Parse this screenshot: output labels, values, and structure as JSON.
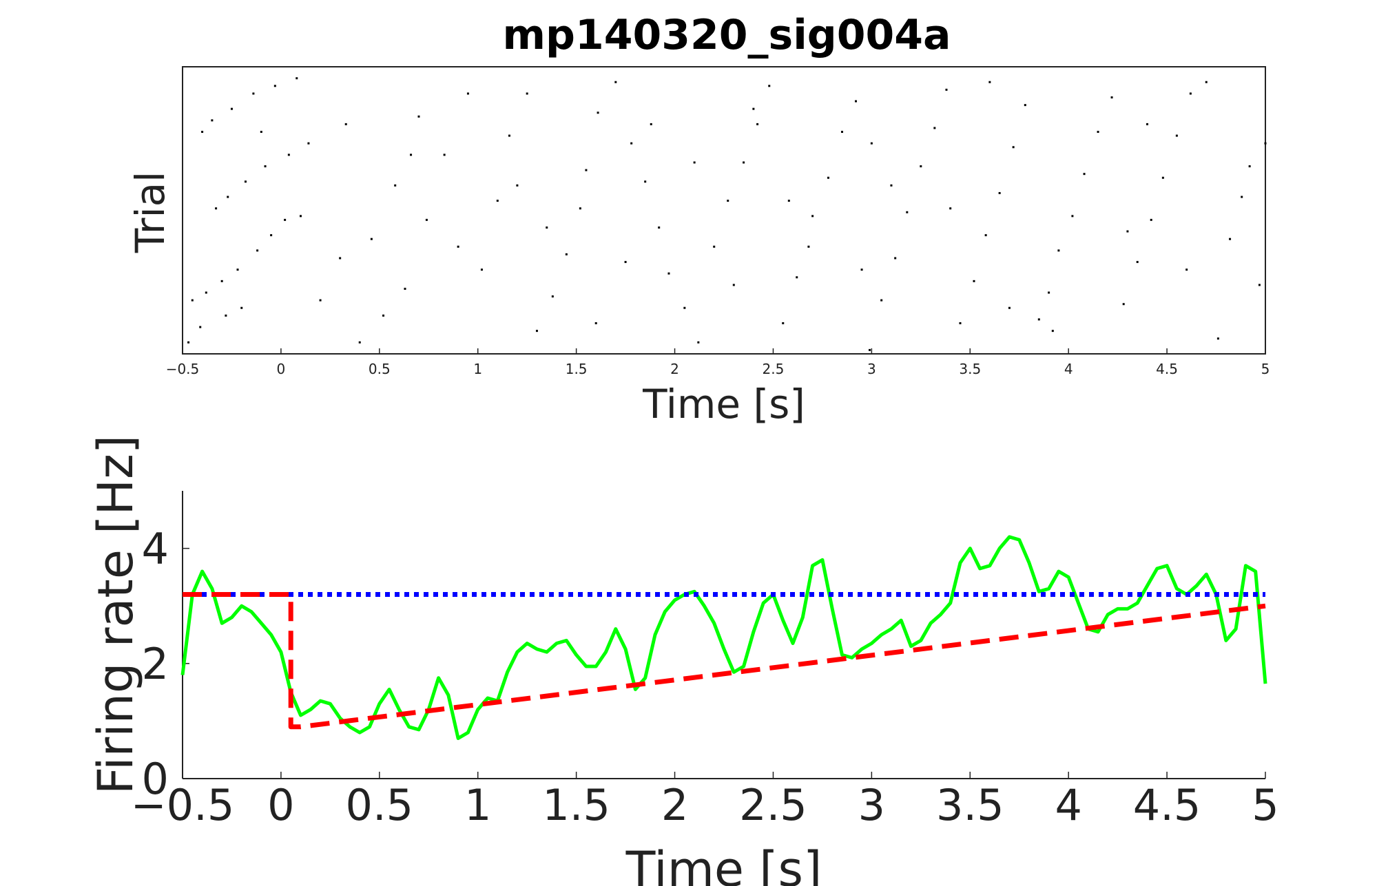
{
  "title": "mp140320_sig004a",
  "chart_data": [
    {
      "type": "scatter",
      "subtype": "raster",
      "xlabel": "Time [s]",
      "ylabel": "Trial",
      "xlim": [
        -0.5,
        5
      ],
      "ylim": [
        0,
        75
      ],
      "xticks": [
        "−0.5",
        "0",
        "0.5",
        "1",
        "1.5",
        "2",
        "2.5",
        "3",
        "3.5",
        "4",
        "4.5",
        "5"
      ],
      "yticks": [],
      "grid": false,
      "series": [
        {
          "marker_color": "#000000",
          "points": [
            [
              -0.47,
              3
            ],
            [
              -0.41,
              7
            ],
            [
              -0.28,
              10
            ],
            [
              -0.2,
              12
            ],
            [
              -0.45,
              14
            ],
            [
              -0.38,
              16
            ],
            [
              -0.3,
              19
            ],
            [
              -0.22,
              22
            ],
            [
              -0.12,
              27
            ],
            [
              -0.05,
              31
            ],
            [
              0.02,
              35
            ],
            [
              0.1,
              36
            ],
            [
              -0.33,
              38
            ],
            [
              -0.27,
              41
            ],
            [
              -0.18,
              45
            ],
            [
              -0.08,
              49
            ],
            [
              0.04,
              52
            ],
            [
              0.14,
              55
            ],
            [
              -0.4,
              58
            ],
            [
              -0.35,
              61
            ],
            [
              -0.25,
              64
            ],
            [
              -0.14,
              68
            ],
            [
              -0.03,
              70
            ],
            [
              0.08,
              72
            ],
            [
              0.33,
              60
            ],
            [
              0.4,
              3
            ],
            [
              0.52,
              10
            ],
            [
              0.63,
              17
            ],
            [
              0.46,
              30
            ],
            [
              0.74,
              35
            ],
            [
              0.58,
              44
            ],
            [
              0.83,
              52
            ],
            [
              0.7,
              62
            ],
            [
              0.95,
              68
            ],
            [
              1.02,
              22
            ],
            [
              1.1,
              40
            ],
            [
              1.16,
              57
            ],
            [
              1.25,
              68
            ],
            [
              1.3,
              6
            ],
            [
              1.38,
              15
            ],
            [
              1.45,
              26
            ],
            [
              1.52,
              38
            ],
            [
              1.55,
              48
            ],
            [
              1.61,
              63
            ],
            [
              1.7,
              71
            ],
            [
              1.78,
              55
            ],
            [
              1.85,
              45
            ],
            [
              1.92,
              33
            ],
            [
              1.97,
              21
            ],
            [
              2.05,
              12
            ],
            [
              2.12,
              3
            ],
            [
              2.2,
              28
            ],
            [
              2.27,
              40
            ],
            [
              2.35,
              50
            ],
            [
              2.42,
              60
            ],
            [
              2.48,
              70
            ],
            [
              2.55,
              8
            ],
            [
              2.62,
              20
            ],
            [
              2.7,
              36
            ],
            [
              2.78,
              46
            ],
            [
              2.85,
              58
            ],
            [
              2.92,
              66
            ],
            [
              2.99,
              1
            ],
            [
              3.05,
              14
            ],
            [
              3.12,
              25
            ],
            [
              3.18,
              37
            ],
            [
              3.25,
              49
            ],
            [
              3.32,
              59
            ],
            [
              3.38,
              69
            ],
            [
              3.45,
              8
            ],
            [
              3.52,
              19
            ],
            [
              3.58,
              31
            ],
            [
              3.65,
              42
            ],
            [
              3.72,
              54
            ],
            [
              3.78,
              65
            ],
            [
              3.85,
              9
            ],
            [
              3.9,
              16
            ],
            [
              3.95,
              27
            ],
            [
              4.02,
              36
            ],
            [
              4.08,
              47
            ],
            [
              4.15,
              58
            ],
            [
              4.22,
              67
            ],
            [
              4.28,
              13
            ],
            [
              4.35,
              24
            ],
            [
              4.42,
              35
            ],
            [
              4.48,
              46
            ],
            [
              4.55,
              57
            ],
            [
              4.62,
              68
            ],
            [
              4.7,
              71
            ],
            [
              4.76,
              4
            ],
            [
              4.82,
              30
            ],
            [
              4.88,
              41
            ],
            [
              4.92,
              49
            ],
            [
              4.97,
              18
            ],
            [
              5.0,
              55
            ],
            [
              3.92,
              6
            ],
            [
              3.7,
              12
            ],
            [
              3.1,
              44
            ],
            [
              2.95,
              22
            ],
            [
              2.68,
              28
            ],
            [
              2.4,
              64
            ],
            [
              2.3,
              18
            ],
            [
              2.1,
              50
            ],
            [
              1.88,
              60
            ],
            [
              1.6,
              8
            ],
            [
              1.35,
              33
            ],
            [
              1.2,
              44
            ],
            [
              0.9,
              28
            ],
            [
              0.66,
              52
            ],
            [
              0.2,
              14
            ],
            [
              0.3,
              25
            ],
            [
              -0.1,
              58
            ],
            [
              4.3,
              32
            ],
            [
              4.6,
              22
            ],
            [
              4.4,
              60
            ],
            [
              3.6,
              71
            ],
            [
              3.4,
              38
            ],
            [
              3.0,
              55
            ],
            [
              2.58,
              40
            ],
            [
              1.75,
              24
            ]
          ]
        }
      ]
    },
    {
      "type": "line",
      "xlabel": "Time [s]",
      "ylabel": "Firing rate [Hz]",
      "xlim": [
        -0.5,
        5
      ],
      "ylim": [
        0,
        5
      ],
      "xticks": [
        "−0.5",
        "0",
        "0.5",
        "1",
        "1.5",
        "2",
        "2.5",
        "3",
        "3.5",
        "4",
        "4.5",
        "5"
      ],
      "yticks": [
        "0",
        "2",
        "4"
      ],
      "grid": false,
      "series": [
        {
          "color": "#00ff00",
          "style": "solid",
          "x": [
            -0.5,
            -0.45,
            -0.4,
            -0.35,
            -0.3,
            -0.25,
            -0.2,
            -0.15,
            -0.1,
            -0.05,
            0,
            0.05,
            0.1,
            0.15,
            0.2,
            0.25,
            0.3,
            0.35,
            0.4,
            0.45,
            0.5,
            0.55,
            0.6,
            0.65,
            0.7,
            0.75,
            0.8,
            0.85,
            0.9,
            0.95,
            1,
            1.05,
            1.1,
            1.15,
            1.2,
            1.25,
            1.3,
            1.35,
            1.4,
            1.45,
            1.5,
            1.55,
            1.6,
            1.65,
            1.7,
            1.75,
            1.8,
            1.85,
            1.9,
            1.95,
            2,
            2.05,
            2.1,
            2.15,
            2.2,
            2.25,
            2.3,
            2.35,
            2.4,
            2.45,
            2.5,
            2.55,
            2.6,
            2.65,
            2.7,
            2.75,
            2.8,
            2.85,
            2.9,
            2.95,
            3,
            3.05,
            3.1,
            3.15,
            3.2,
            3.25,
            3.3,
            3.35,
            3.4,
            3.45,
            3.5,
            3.55,
            3.6,
            3.65,
            3.7,
            3.75,
            3.8,
            3.85,
            3.9,
            3.95,
            4,
            4.05,
            4.1,
            4.15,
            4.2,
            4.25,
            4.3,
            4.35,
            4.4,
            4.45,
            4.5,
            4.55,
            4.6,
            4.65,
            4.7,
            4.75,
            4.8,
            4.85,
            4.9,
            4.95,
            5
          ],
          "y": [
            1.8,
            3.2,
            3.6,
            3.3,
            2.7,
            2.8,
            3.0,
            2.9,
            2.7,
            2.5,
            2.2,
            1.5,
            1.1,
            1.2,
            1.35,
            1.3,
            1.05,
            0.9,
            0.8,
            0.9,
            1.3,
            1.55,
            1.2,
            0.9,
            0.85,
            1.2,
            1.75,
            1.45,
            0.7,
            0.8,
            1.2,
            1.4,
            1.35,
            1.85,
            2.2,
            2.35,
            2.25,
            2.2,
            2.35,
            2.4,
            2.15,
            1.95,
            1.95,
            2.2,
            2.6,
            2.25,
            1.55,
            1.75,
            2.5,
            2.9,
            3.1,
            3.2,
            3.25,
            3.0,
            2.7,
            2.25,
            1.85,
            1.95,
            2.55,
            3.05,
            3.2,
            2.75,
            2.35,
            2.8,
            3.7,
            3.8,
            2.95,
            2.15,
            2.1,
            2.25,
            2.35,
            2.5,
            2.6,
            2.75,
            2.3,
            2.4,
            2.7,
            2.85,
            3.05,
            3.75,
            4.0,
            3.65,
            3.7,
            4.0,
            4.2,
            4.15,
            3.75,
            3.25,
            3.3,
            3.6,
            3.5,
            3.05,
            2.6,
            2.55,
            2.85,
            2.95,
            2.95,
            3.05,
            3.35,
            3.65,
            3.7,
            3.3,
            3.2,
            3.35,
            3.55,
            3.2,
            2.4,
            2.6,
            3.7,
            3.6,
            1.65
          ]
        },
        {
          "color": "#0000ff",
          "style": "dotted",
          "x": [
            -0.5,
            5
          ],
          "y": [
            3.2,
            3.2
          ]
        },
        {
          "color": "#ff0000",
          "style": "dashed",
          "x": [
            -0.5,
            0.05,
            0.05,
            0.1,
            5
          ],
          "y": [
            3.2,
            3.2,
            0.9,
            0.9,
            3.0
          ]
        }
      ]
    }
  ]
}
